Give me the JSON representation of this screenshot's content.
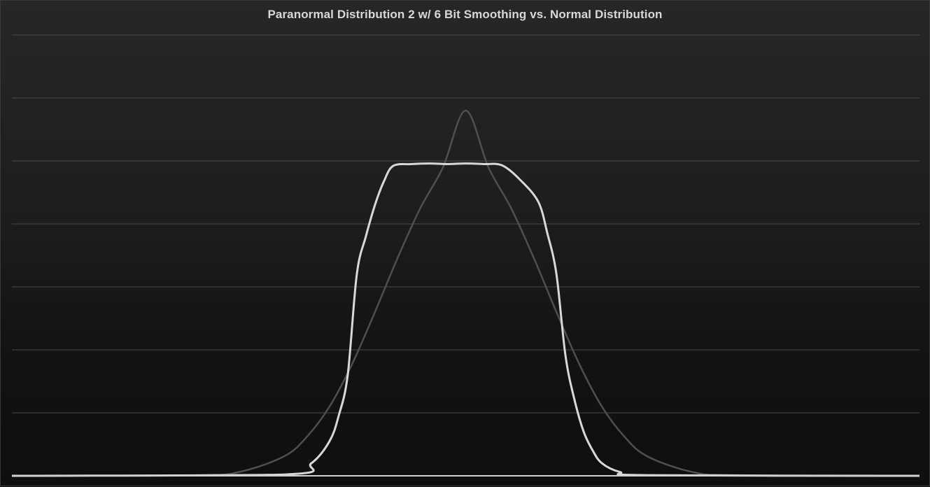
{
  "chart_data": {
    "type": "line",
    "title": "Paranormal Distribution 2 w/ 6 Bit Smoothing vs. Normal Distribution",
    "xlabel": "",
    "ylabel": "",
    "xlim": [
      -5,
      5
    ],
    "ylim": [
      0,
      7
    ],
    "grid": "horizontal",
    "legend": "none",
    "series": [
      {
        "kind": "normal",
        "color": "#4f4f4f",
        "x": [
          -5.0,
          -3.0,
          -2.5,
          -2.0,
          -1.75,
          -1.5,
          -1.25,
          -1.0,
          -0.75,
          -0.5,
          -0.25,
          0.0,
          0.25,
          0.5,
          0.75,
          1.0,
          1.25,
          1.5,
          1.75,
          2.0,
          2.5,
          3.0,
          5.0
        ],
        "values": [
          0.0,
          0.01,
          0.06,
          0.31,
          0.62,
          1.1,
          1.78,
          2.6,
          3.46,
          4.25,
          4.9,
          5.8,
          4.9,
          4.25,
          3.46,
          2.6,
          1.78,
          1.1,
          0.62,
          0.31,
          0.06,
          0.01,
          0.0
        ]
      },
      {
        "kind": "paranormal",
        "color": "#d8d8d8",
        "x": [
          -5.0,
          -2.0,
          -1.7,
          -1.5,
          -1.4,
          -1.3,
          -1.2,
          -1.1,
          -1.0,
          -0.9,
          -0.8,
          -0.6,
          -0.4,
          -0.2,
          0.0,
          0.2,
          0.4,
          0.6,
          0.8,
          0.9,
          1.0,
          1.1,
          1.2,
          1.3,
          1.4,
          1.5,
          1.7,
          2.0,
          5.0
        ],
        "values": [
          0.0,
          0.02,
          0.2,
          0.55,
          0.95,
          1.6,
          3.2,
          3.8,
          4.3,
          4.68,
          4.92,
          4.95,
          4.96,
          4.95,
          4.96,
          4.95,
          4.93,
          4.7,
          4.35,
          3.85,
          3.2,
          1.9,
          1.2,
          0.7,
          0.4,
          0.2,
          0.06,
          0.01,
          0.0
        ]
      }
    ]
  }
}
